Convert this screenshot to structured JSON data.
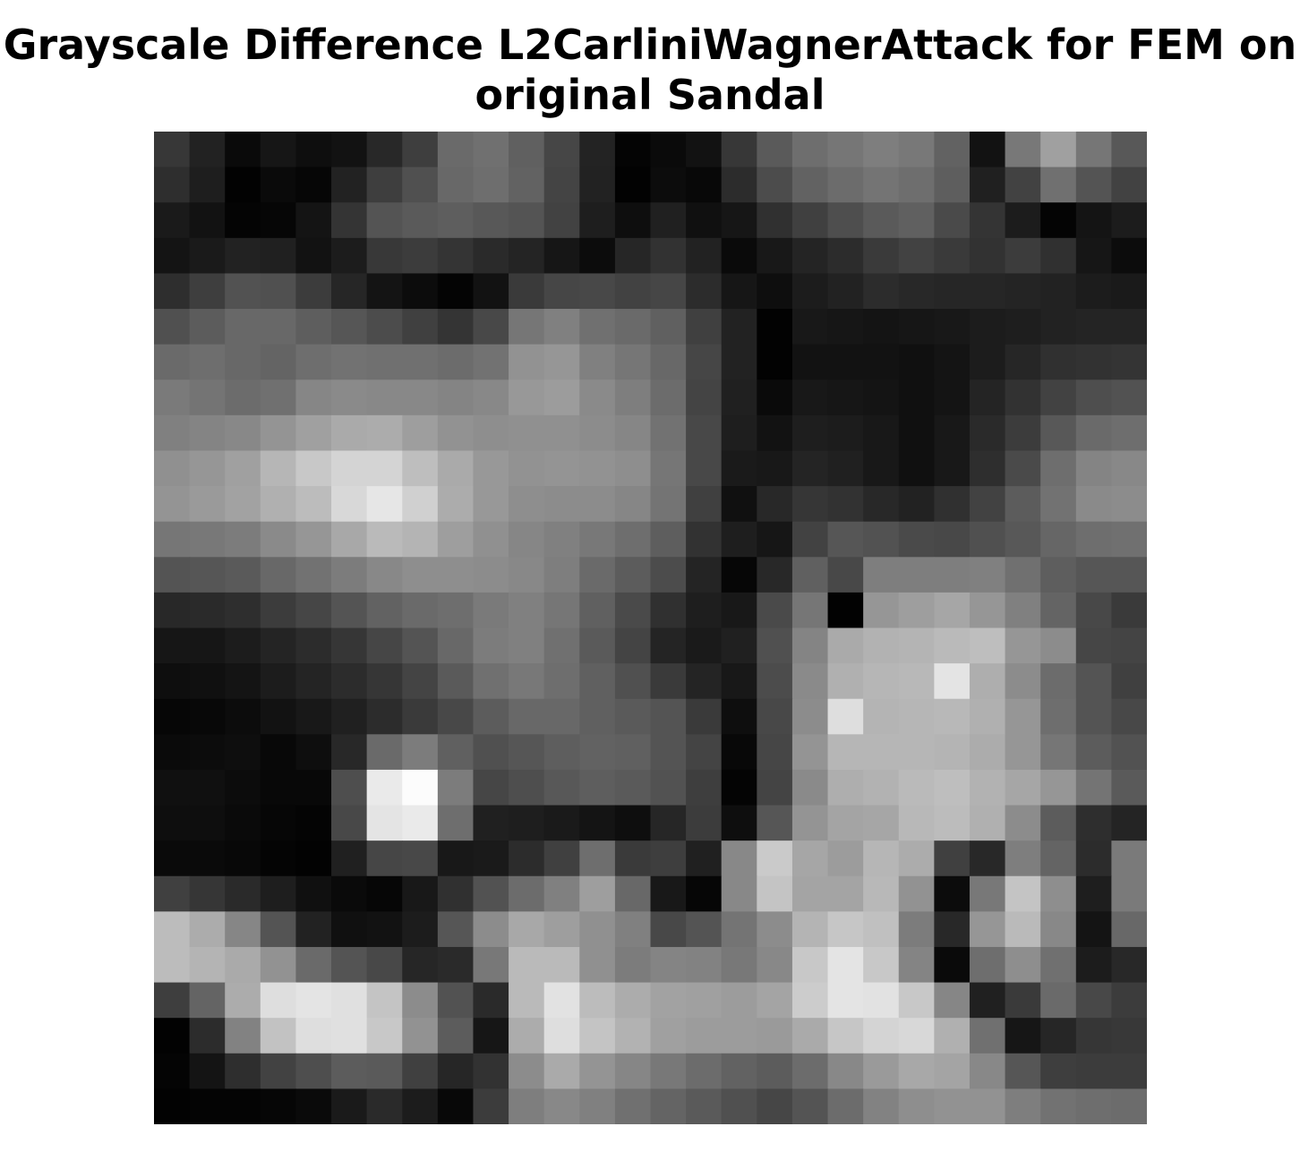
{
  "title": {
    "line1": "Grayscale Difference L2CarliniWagnerAttack for FEM on",
    "line2": "original Sandal"
  },
  "chart_data": {
    "type": "heatmap",
    "title": "Grayscale Difference L2CarliniWagnerAttack for FEM on original Sandal",
    "colormap": "gray",
    "axes_visible": false,
    "grid": false,
    "rows": 28,
    "cols": 28,
    "value_range": [
      0,
      255
    ],
    "values": [
      [
        55,
        34,
        10,
        22,
        14,
        18,
        40,
        62,
        106,
        112,
        96,
        70,
        35,
        4,
        10,
        18,
        55,
        90,
        110,
        118,
        126,
        120,
        98,
        18,
        120,
        160,
        118,
        88
      ],
      [
        46,
        30,
        2,
        10,
        6,
        34,
        62,
        80,
        104,
        110,
        98,
        68,
        34,
        2,
        12,
        8,
        44,
        76,
        98,
        108,
        116,
        110,
        94,
        32,
        66,
        112,
        84,
        66
      ],
      [
        26,
        18,
        4,
        6,
        20,
        52,
        84,
        90,
        94,
        88,
        84,
        66,
        30,
        14,
        32,
        16,
        22,
        48,
        64,
        78,
        90,
        96,
        74,
        52,
        28,
        4,
        20,
        28
      ],
      [
        20,
        26,
        34,
        32,
        18,
        28,
        56,
        60,
        52,
        42,
        36,
        22,
        12,
        38,
        50,
        34,
        10,
        24,
        36,
        44,
        58,
        66,
        58,
        50,
        60,
        48,
        22,
        12
      ],
      [
        46,
        62,
        82,
        80,
        60,
        38,
        20,
        12,
        4,
        18,
        58,
        70,
        72,
        66,
        70,
        44,
        22,
        14,
        28,
        34,
        44,
        40,
        38,
        38,
        36,
        34,
        28,
        26
      ],
      [
        80,
        92,
        104,
        104,
        94,
        86,
        76,
        64,
        52,
        72,
        118,
        128,
        112,
        106,
        96,
        64,
        34,
        2,
        24,
        22,
        20,
        22,
        24,
        28,
        30,
        34,
        36,
        36
      ],
      [
        106,
        110,
        104,
        100,
        110,
        114,
        112,
        112,
        108,
        114,
        146,
        150,
        128,
        118,
        104,
        70,
        34,
        2,
        18,
        18,
        18,
        16,
        20,
        28,
        38,
        48,
        50,
        52
      ],
      [
        122,
        116,
        108,
        112,
        134,
        138,
        136,
        136,
        132,
        136,
        152,
        156,
        138,
        126,
        108,
        68,
        32,
        10,
        24,
        22,
        20,
        16,
        20,
        36,
        50,
        66,
        78,
        82
      ],
      [
        128,
        132,
        136,
        148,
        160,
        170,
        172,
        158,
        146,
        142,
        144,
        144,
        140,
        134,
        114,
        72,
        30,
        18,
        30,
        28,
        24,
        16,
        24,
        42,
        60,
        88,
        106,
        110
      ],
      [
        144,
        150,
        160,
        182,
        200,
        212,
        212,
        190,
        170,
        152,
        146,
        148,
        146,
        142,
        118,
        72,
        26,
        24,
        36,
        32,
        24,
        16,
        24,
        46,
        74,
        110,
        132,
        136
      ],
      [
        148,
        154,
        162,
        176,
        188,
        216,
        230,
        208,
        172,
        152,
        142,
        140,
        140,
        134,
        116,
        64,
        16,
        40,
        54,
        50,
        40,
        34,
        48,
        66,
        92,
        114,
        138,
        140
      ],
      [
        118,
        120,
        124,
        138,
        150,
        168,
        186,
        180,
        158,
        144,
        134,
        128,
        120,
        110,
        94,
        50,
        30,
        22,
        66,
        86,
        82,
        74,
        72,
        80,
        88,
        102,
        110,
        112
      ],
      [
        84,
        86,
        90,
        104,
        114,
        124,
        136,
        142,
        142,
        140,
        136,
        126,
        106,
        92,
        76,
        36,
        6,
        40,
        96,
        72,
        126,
        126,
        126,
        128,
        112,
        94,
        86,
        86
      ],
      [
        40,
        42,
        46,
        60,
        70,
        84,
        98,
        106,
        110,
        122,
        128,
        118,
        96,
        74,
        48,
        30,
        24,
        74,
        118,
        2,
        150,
        158,
        166,
        150,
        128,
        100,
        72,
        58
      ],
      [
        22,
        22,
        28,
        36,
        44,
        54,
        70,
        84,
        104,
        124,
        128,
        112,
        90,
        68,
        36,
        26,
        32,
        80,
        132,
        170,
        178,
        180,
        186,
        190,
        150,
        140,
        70,
        68
      ],
      [
        14,
        16,
        20,
        28,
        36,
        44,
        54,
        68,
        90,
        112,
        120,
        110,
        96,
        80,
        58,
        36,
        24,
        76,
        138,
        176,
        182,
        184,
        228,
        174,
        140,
        108,
        84,
        64
      ],
      [
        6,
        8,
        12,
        18,
        24,
        32,
        44,
        58,
        72,
        92,
        104,
        104,
        96,
        90,
        84,
        58,
        14,
        72,
        140,
        222,
        180,
        182,
        184,
        176,
        150,
        110,
        84,
        72
      ],
      [
        10,
        12,
        14,
        8,
        14,
        40,
        106,
        124,
        96,
        80,
        86,
        94,
        98,
        96,
        84,
        68,
        8,
        70,
        148,
        182,
        182,
        182,
        180,
        172,
        150,
        118,
        92,
        82
      ],
      [
        16,
        16,
        12,
        8,
        8,
        78,
        234,
        252,
        124,
        70,
        78,
        88,
        94,
        90,
        82,
        62,
        4,
        68,
        138,
        174,
        178,
        186,
        190,
        178,
        166,
        150,
        116,
        90
      ],
      [
        14,
        14,
        10,
        6,
        4,
        72,
        228,
        234,
        110,
        32,
        30,
        26,
        20,
        14,
        38,
        60,
        14,
        86,
        148,
        164,
        166,
        184,
        188,
        176,
        140,
        92,
        46,
        36
      ],
      [
        10,
        10,
        8,
        4,
        2,
        32,
        70,
        72,
        24,
        26,
        44,
        64,
        110,
        58,
        62,
        32,
        136,
        202,
        166,
        156,
        182,
        172,
        64,
        40,
        126,
        100,
        44,
        122
      ],
      [
        64,
        54,
        42,
        30,
        16,
        10,
        6,
        24,
        48,
        82,
        108,
        128,
        158,
        104,
        24,
        6,
        136,
        196,
        164,
        164,
        184,
        146,
        12,
        120,
        196,
        142,
        30,
        122
      ],
      [
        188,
        172,
        134,
        84,
        34,
        16,
        18,
        28,
        86,
        140,
        168,
        158,
        144,
        128,
        72,
        84,
        116,
        140,
        180,
        198,
        192,
        124,
        40,
        150,
        186,
        136,
        20,
        104
      ],
      [
        188,
        180,
        170,
        146,
        106,
        84,
        72,
        38,
        42,
        120,
        186,
        186,
        144,
        124,
        132,
        130,
        120,
        136,
        200,
        228,
        200,
        132,
        10,
        110,
        142,
        112,
        28,
        40
      ],
      [
        62,
        100,
        172,
        222,
        228,
        224,
        196,
        140,
        82,
        42,
        186,
        226,
        188,
        172,
        162,
        160,
        156,
        164,
        204,
        228,
        226,
        200,
        134,
        32,
        58,
        106,
        72,
        60
      ],
      [
        2,
        44,
        130,
        194,
        222,
        224,
        200,
        146,
        92,
        22,
        172,
        222,
        196,
        178,
        160,
        156,
        156,
        154,
        170,
        198,
        212,
        216,
        176,
        112,
        22,
        38,
        54,
        56
      ],
      [
        4,
        20,
        46,
        66,
        78,
        92,
        90,
        64,
        38,
        50,
        140,
        170,
        148,
        134,
        120,
        108,
        98,
        92,
        108,
        136,
        154,
        168,
        164,
        136,
        86,
        62,
        60,
        60
      ],
      [
        2,
        4,
        4,
        6,
        10,
        26,
        42,
        28,
        8,
        60,
        126,
        136,
        128,
        112,
        100,
        90,
        80,
        70,
        84,
        108,
        130,
        142,
        146,
        146,
        126,
        114,
        110,
        108
      ]
    ]
  }
}
